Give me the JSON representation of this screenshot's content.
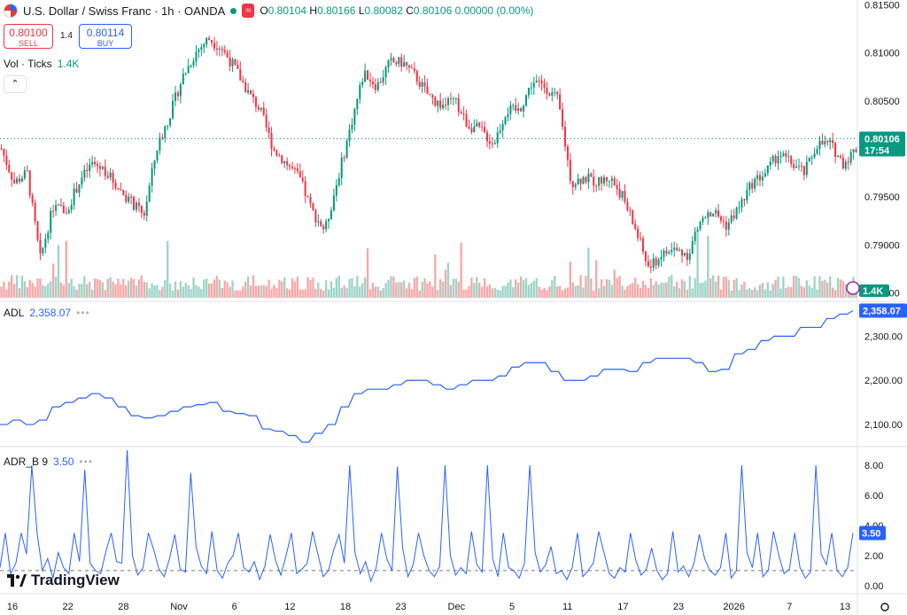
{
  "header": {
    "symbol_title": "U.S. Dollar / Swiss Franc · 1h · OANDA",
    "badge_text": "≈",
    "open_label": "O",
    "open": "0.80104",
    "high_label": "H",
    "high": "0.80166",
    "low_label": "L",
    "low": "0.80082",
    "close_label": "C",
    "close": "0.80106",
    "change": "0.00000 (0.00%)"
  },
  "trade": {
    "sell_price": "0.80100",
    "sell_label": "SELL",
    "spread": "1.4",
    "buy_price": "0.80114",
    "buy_label": "BUY"
  },
  "volume": {
    "label": "Vol · Ticks",
    "value": "1.4K"
  },
  "adl": {
    "label": "ADL",
    "value": "2,358.07"
  },
  "adrb": {
    "label": "ADR_B 9",
    "value": "3.50"
  },
  "branding": {
    "name": "TradingView"
  },
  "colors": {
    "up": "#089981",
    "down": "#f23645",
    "accent": "#2962ff",
    "vol_up": "#9fd4c9",
    "vol_down": "#f7a9a7"
  },
  "chart_data": [
    {
      "type": "candlestick",
      "title": "U.S. Dollar / Swiss Franc · 1h · OANDA",
      "x_tick_labels": [
        "16",
        "22",
        "28",
        "Nov",
        "6",
        "12",
        "18",
        "23",
        "Dec",
        "5",
        "11",
        "17",
        "23",
        "2026",
        "7",
        "13"
      ],
      "y_ticks": [
        0.785,
        0.79,
        0.795,
        0.8,
        0.805,
        0.81,
        0.815
      ],
      "y_tick_labels": [
        "0.78500",
        "0.79000",
        "0.79500",
        "0.80000",
        "0.80500",
        "0.81000",
        "0.81500"
      ],
      "ylim": [
        0.7845,
        0.8155
      ],
      "last_price": "0.80106",
      "countdown": "17:54",
      "price_path": [
        0.8,
        0.7965,
        0.7975,
        0.7885,
        0.794,
        0.7935,
        0.7965,
        0.7985,
        0.7978,
        0.796,
        0.7945,
        0.793,
        0.8,
        0.8035,
        0.8075,
        0.81,
        0.8115,
        0.8105,
        0.8085,
        0.806,
        0.804,
        0.8,
        0.7985,
        0.797,
        0.7935,
        0.7915,
        0.797,
        0.8025,
        0.808,
        0.8065,
        0.809,
        0.809,
        0.8075,
        0.8055,
        0.8045,
        0.805,
        0.8025,
        0.802,
        0.8005,
        0.804,
        0.804,
        0.807,
        0.8065,
        0.805,
        0.7965,
        0.797,
        0.7965,
        0.797,
        0.795,
        0.7915,
        0.7875,
        0.789,
        0.7895,
        0.789,
        0.7925,
        0.7935,
        0.792,
        0.794,
        0.7965,
        0.7975,
        0.7995,
        0.7985,
        0.7975,
        0.8005,
        0.8005,
        0.7985,
        0.8
      ],
      "volume_label": "Vol · Ticks",
      "volume_last": "1.4K"
    },
    {
      "type": "line",
      "title": "ADL",
      "last_value": "2,358.07",
      "y_ticks": [
        2100,
        2200,
        2300
      ],
      "y_tick_labels": [
        "2,100.00",
        "2,200.00",
        "2,300.00"
      ],
      "ylim": [
        2058,
        2375
      ],
      "values": [
        2100,
        2110,
        2100,
        2110,
        2140,
        2150,
        2160,
        2170,
        2160,
        2140,
        2120,
        2115,
        2120,
        2130,
        2140,
        2145,
        2150,
        2130,
        2125,
        2120,
        2090,
        2085,
        2075,
        2060,
        2080,
        2100,
        2140,
        2170,
        2180,
        2180,
        2190,
        2200,
        2200,
        2190,
        2180,
        2190,
        2200,
        2200,
        2210,
        2230,
        2240,
        2240,
        2220,
        2200,
        2200,
        2210,
        2225,
        2225,
        2220,
        2240,
        2250,
        2250,
        2250,
        2240,
        2220,
        2225,
        2260,
        2270,
        2290,
        2300,
        2300,
        2320,
        2320,
        2340,
        2350,
        2358
      ]
    },
    {
      "type": "line",
      "title": "ADR_B 9",
      "last_value": "3.50",
      "y_ticks": [
        0,
        2,
        4,
        6,
        8
      ],
      "y_tick_labels": [
        "0.00",
        "2.00",
        "4.00",
        "6.00",
        "8.00"
      ],
      "ylim": [
        -0.3,
        9.0
      ],
      "reference_line": 1.0,
      "values": [
        1.2,
        3.5,
        0.8,
        1.5,
        3.5,
        2.1,
        8.0,
        3.5,
        1.0,
        1.8,
        0.5,
        2.2,
        1.2,
        0.8,
        3.5,
        1.6,
        7.7,
        1.5,
        1.0,
        0.8,
        2.3,
        3.5,
        1.6,
        1.5,
        9.0,
        2.0,
        0.7,
        1.2,
        3.5,
        2.4,
        1.1,
        0.6,
        1.8,
        3.4,
        1.1,
        0.9,
        7.5,
        2.6,
        1.3,
        0.8,
        3.6,
        1.0,
        0.5,
        1.5,
        2.0,
        3.5,
        1.2,
        0.9,
        1.6,
        0.4,
        1.3,
        3.4,
        1.7,
        0.7,
        2.0,
        3.5,
        0.8,
        1.1,
        1.5,
        3.6,
        2.1,
        0.6,
        1.0,
        2.4,
        3.4,
        1.5,
        8.0,
        2.2,
        0.8,
        1.6,
        0.3,
        1.2,
        3.5,
        1.8,
        1.0,
        7.9,
        2.5,
        0.6,
        1.4,
        3.5,
        2.0,
        1.0,
        0.6,
        1.3,
        8.0,
        2.0,
        0.7,
        1.2,
        0.8,
        3.6,
        1.4,
        0.9,
        8.0,
        1.8,
        0.6,
        3.5,
        1.2,
        1.0,
        0.5,
        1.5,
        8.0,
        2.2,
        0.9,
        1.4,
        2.6,
        0.8,
        1.0,
        0.4,
        1.2,
        3.5,
        0.6,
        1.0,
        1.5,
        3.6,
        2.2,
        0.8,
        0.5,
        1.2,
        0.9,
        3.5,
        1.7,
        0.7,
        1.1,
        2.5,
        1.0,
        0.4,
        0.8,
        3.6,
        0.9,
        1.3,
        0.6,
        1.5,
        3.4,
        1.8,
        1.0,
        0.7,
        1.2,
        3.5,
        0.5,
        1.0,
        8.0,
        2.2,
        1.2,
        3.5,
        0.6,
        1.0,
        3.6,
        2.0,
        0.8,
        1.1,
        3.5,
        1.2,
        0.5,
        0.9,
        8.0,
        2.1,
        1.4,
        3.5,
        1.0,
        0.6,
        1.2,
        3.5
      ]
    }
  ]
}
